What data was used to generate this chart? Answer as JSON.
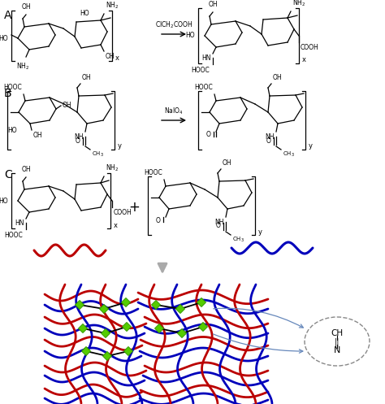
{
  "fig_width": 4.74,
  "fig_height": 4.97,
  "dpi": 100,
  "bg_color": "#ffffff",
  "label_A": "A",
  "label_B": "B",
  "label_C": "C",
  "red_color": "#bb0000",
  "blue_color": "#0000bb",
  "green_color": "#55cc00",
  "black_color": "#000000",
  "gray_color": "#888888",
  "reagent_A": "ClCH$_2$COOH",
  "reagent_B": "NaIO$_4$",
  "subscript_x": "x",
  "subscript_y": "y"
}
